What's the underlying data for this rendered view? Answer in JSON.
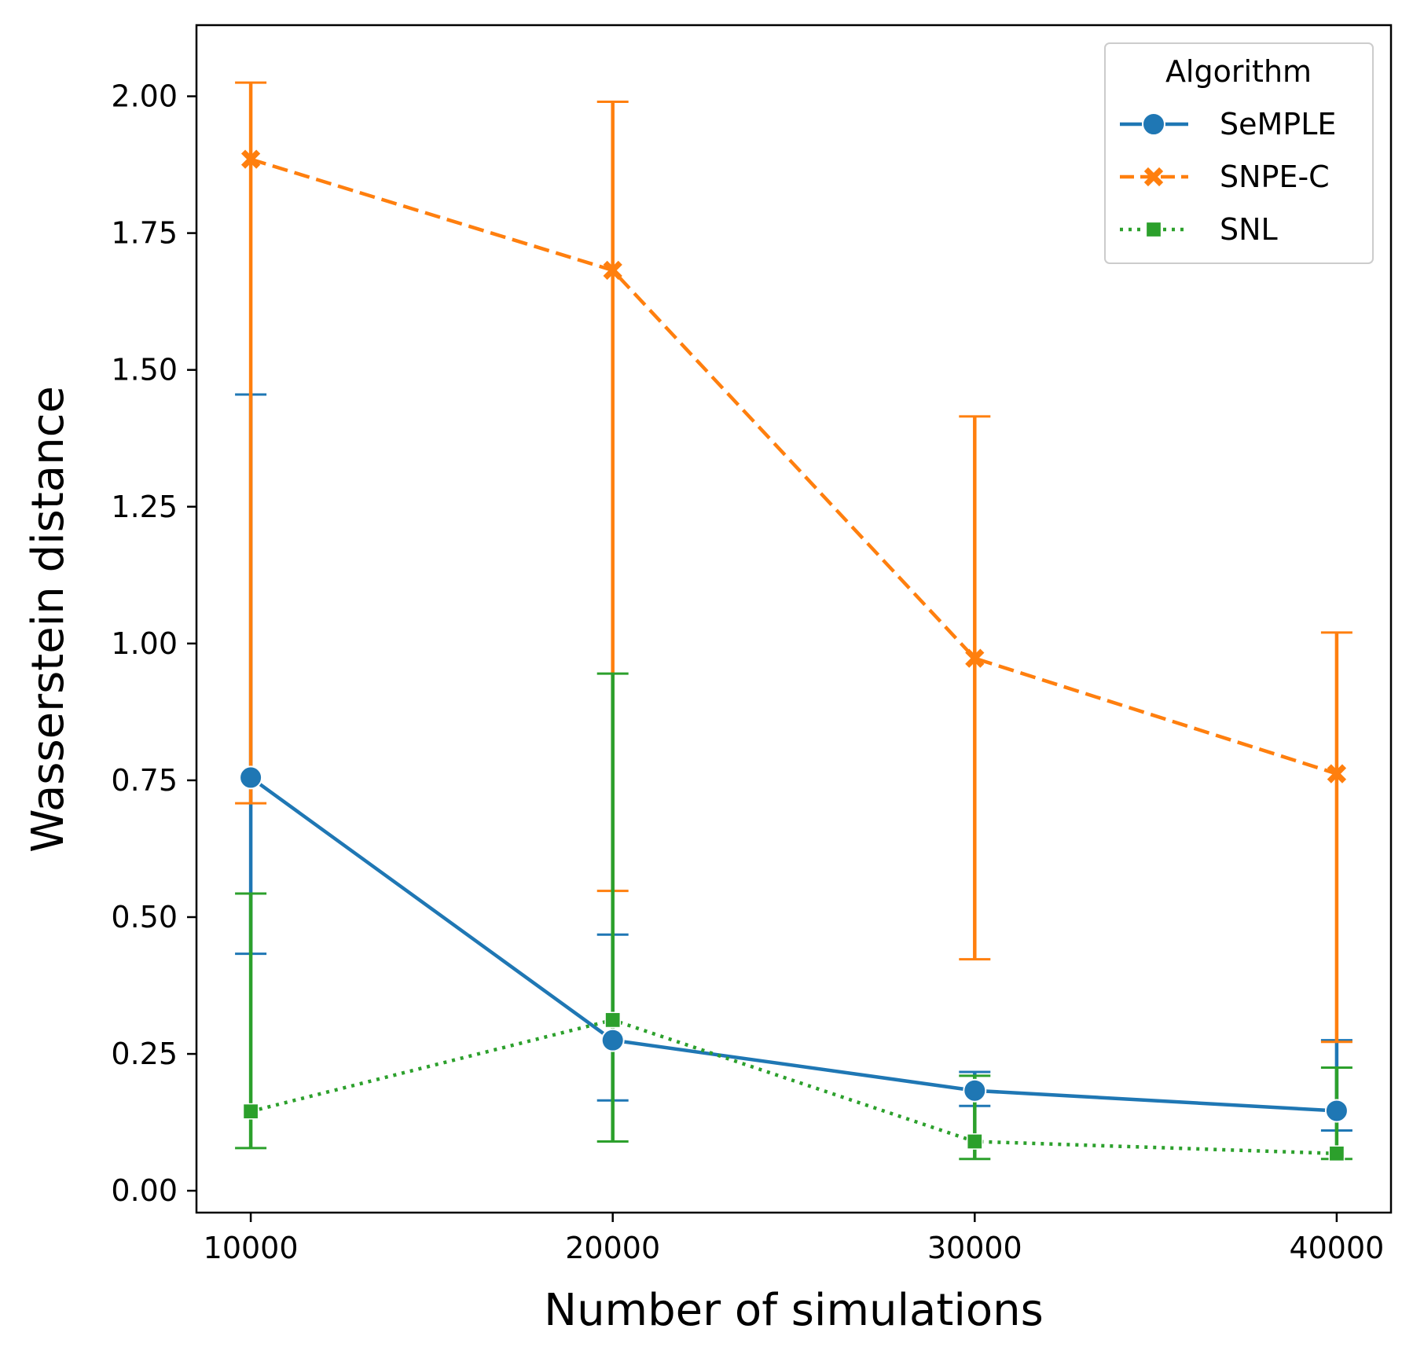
{
  "chart_data": {
    "type": "line",
    "title": "",
    "xlabel": "Number of simulations",
    "ylabel": "Wasserstein distance",
    "x": [
      10000,
      20000,
      30000,
      40000
    ],
    "x_tick_labels": [
      "10000",
      "20000",
      "30000",
      "40000"
    ],
    "y_ticks": [
      0.0,
      0.25,
      0.5,
      0.75,
      1.0,
      1.25,
      1.5,
      1.75,
      2.0
    ],
    "y_tick_labels": [
      "0.00",
      "0.25",
      "0.50",
      "0.75",
      "1.00",
      "1.25",
      "1.50",
      "1.75",
      "2.00"
    ],
    "xlim": [
      8500,
      41500
    ],
    "ylim": [
      -0.04,
      2.13
    ],
    "grid": false,
    "legend": {
      "title": "Algorithm",
      "placement": "top-right"
    },
    "series": [
      {
        "name": "SeMPLE",
        "color": "#1f77b4",
        "line_style": "solid",
        "marker": "circle",
        "values": [
          0.755,
          0.275,
          0.183,
          0.146
        ],
        "err_low": [
          0.433,
          0.165,
          0.155,
          0.11
        ],
        "err_high": [
          1.455,
          0.468,
          0.217,
          0.275
        ]
      },
      {
        "name": "SNPE-C",
        "color": "#ff7f0e",
        "line_style": "dashed",
        "marker": "x",
        "values": [
          1.885,
          1.682,
          0.973,
          0.762
        ],
        "err_low": [
          0.708,
          0.548,
          0.423,
          0.272
        ],
        "err_high": [
          2.025,
          1.99,
          1.415,
          1.02
        ]
      },
      {
        "name": "SNL",
        "color": "#2ca02c",
        "line_style": "dotted",
        "marker": "square",
        "values": [
          0.145,
          0.312,
          0.09,
          0.068
        ],
        "err_low": [
          0.078,
          0.09,
          0.058,
          0.058
        ],
        "err_high": [
          0.543,
          0.945,
          0.21,
          0.225
        ]
      }
    ]
  }
}
